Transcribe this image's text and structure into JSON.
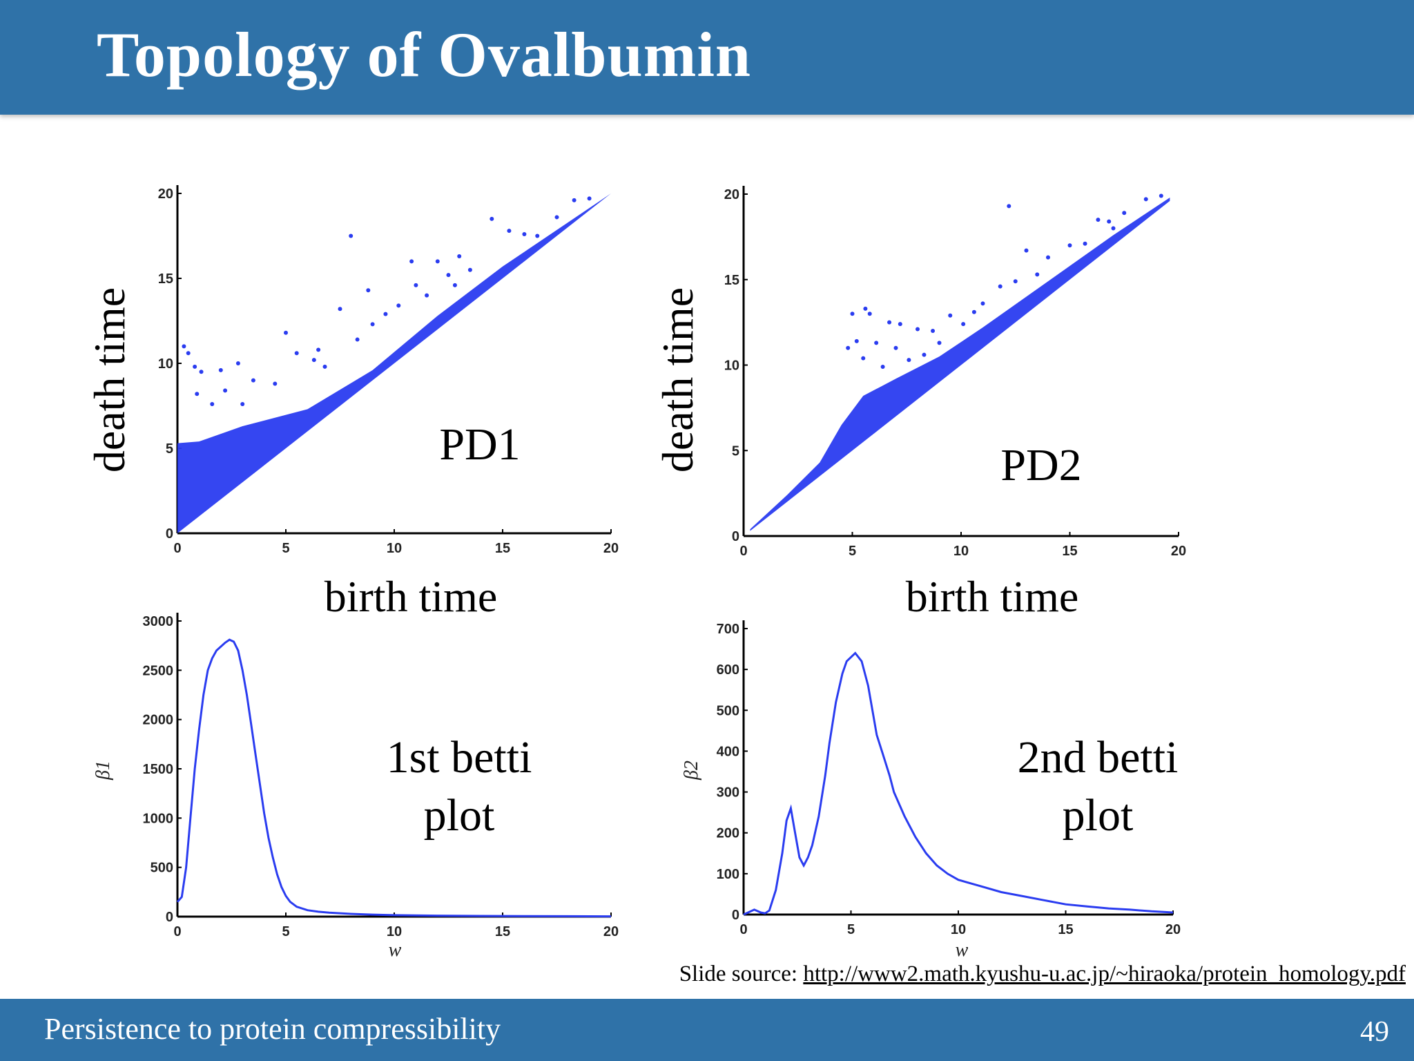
{
  "slide": {
    "title": "Topology of Ovalbumin",
    "footer": "Persistence to protein compressibility",
    "page_number": "49",
    "source_label": "Slide source:",
    "source_url": "http://www2.math.kyushu-u.ac.jp/~hiraoka/protein_homology.pdf"
  },
  "colors": {
    "header": "#2f72a8",
    "series": "#2a3cf0"
  },
  "chart_data": [
    {
      "id": "pd1",
      "type": "scatter",
      "title": "PD1",
      "xlabel": "birth time",
      "ylabel": "death time",
      "xlim": [
        0,
        20
      ],
      "ylim": [
        0,
        20
      ],
      "xticks": [
        0,
        5,
        10,
        15,
        20
      ],
      "yticks": [
        0,
        5,
        10,
        15,
        20
      ],
      "points": [
        [
          0.3,
          11.0
        ],
        [
          0.5,
          10.6
        ],
        [
          0.8,
          9.8
        ],
        [
          1.1,
          9.5
        ],
        [
          2.0,
          9.6
        ],
        [
          2.8,
          10.0
        ],
        [
          5.0,
          11.8
        ],
        [
          5.5,
          10.6
        ],
        [
          6.3,
          10.2
        ],
        [
          6.5,
          10.8
        ],
        [
          8.0,
          17.5
        ],
        [
          8.8,
          14.3
        ],
        [
          10.8,
          16.0
        ],
        [
          12.0,
          16.0
        ],
        [
          13.0,
          16.3
        ],
        [
          14.5,
          18.5
        ],
        [
          15.3,
          17.8
        ],
        [
          16.0,
          17.6
        ],
        [
          18.3,
          19.6
        ],
        [
          7.5,
          13.2
        ],
        [
          9.0,
          12.3
        ],
        [
          10.2,
          13.4
        ],
        [
          11.0,
          14.6
        ],
        [
          12.5,
          15.2
        ],
        [
          13.5,
          15.5
        ],
        [
          16.6,
          17.5
        ],
        [
          17.5,
          18.6
        ],
        [
          19.0,
          19.7
        ],
        [
          3.5,
          9.0
        ],
        [
          4.5,
          8.8
        ],
        [
          2.2,
          8.4
        ],
        [
          1.6,
          7.6
        ],
        [
          0.9,
          8.2
        ],
        [
          3.0,
          7.6
        ],
        [
          6.8,
          9.8
        ],
        [
          8.3,
          11.4
        ],
        [
          9.6,
          12.9
        ],
        [
          11.5,
          14.0
        ],
        [
          12.8,
          14.6
        ]
      ]
    },
    {
      "id": "pd2",
      "type": "scatter",
      "title": "PD2",
      "xlabel": "birth time",
      "ylabel": "death time",
      "xlim": [
        0,
        20
      ],
      "ylim": [
        0,
        20
      ],
      "xticks": [
        0,
        5,
        10,
        15,
        20
      ],
      "yticks": [
        0,
        5,
        10,
        15,
        20
      ],
      "points": [
        [
          5.0,
          13.0
        ],
        [
          5.6,
          13.3
        ],
        [
          5.8,
          13.0
        ],
        [
          6.7,
          12.5
        ],
        [
          7.2,
          12.4
        ],
        [
          8.0,
          12.1
        ],
        [
          8.7,
          12.0
        ],
        [
          12.2,
          19.3
        ],
        [
          13.0,
          16.7
        ],
        [
          13.5,
          15.3
        ],
        [
          14.0,
          16.3
        ],
        [
          15.0,
          17.0
        ],
        [
          15.7,
          17.1
        ],
        [
          16.3,
          18.5
        ],
        [
          17.0,
          18.0
        ],
        [
          18.5,
          19.7
        ],
        [
          10.1,
          12.4
        ],
        [
          10.6,
          13.1
        ],
        [
          11.0,
          13.6
        ],
        [
          9.5,
          12.9
        ],
        [
          6.1,
          11.3
        ],
        [
          7.0,
          11.0
        ],
        [
          5.2,
          11.4
        ],
        [
          4.8,
          11.0
        ],
        [
          5.5,
          10.4
        ],
        [
          11.8,
          14.6
        ],
        [
          12.5,
          14.9
        ],
        [
          16.8,
          18.4
        ],
        [
          17.5,
          18.9
        ],
        [
          19.2,
          19.9
        ],
        [
          6.4,
          9.9
        ],
        [
          7.6,
          10.3
        ],
        [
          8.3,
          10.6
        ],
        [
          9.0,
          11.3
        ]
      ]
    },
    {
      "id": "betti1",
      "type": "line",
      "title": "1st betti plot",
      "xlabel": "w",
      "ylabel": "β1",
      "xlim": [
        0,
        20
      ],
      "ylim": [
        0,
        3000
      ],
      "xticks": [
        0,
        5,
        10,
        15,
        20
      ],
      "yticks": [
        0,
        500,
        1000,
        1500,
        2000,
        2500,
        3000
      ],
      "x": [
        0,
        0.2,
        0.4,
        0.6,
        0.8,
        1.0,
        1.2,
        1.4,
        1.6,
        1.8,
        2.0,
        2.2,
        2.4,
        2.6,
        2.8,
        3.0,
        3.2,
        3.4,
        3.6,
        3.8,
        4.0,
        4.2,
        4.4,
        4.6,
        4.8,
        5.0,
        5.2,
        5.5,
        6.0,
        6.5,
        7.0,
        8.0,
        9.0,
        10.0,
        12.0,
        14.0,
        16.0,
        18.0,
        20.0
      ],
      "y": [
        150,
        200,
        500,
        1000,
        1500,
        1900,
        2250,
        2500,
        2620,
        2700,
        2740,
        2780,
        2810,
        2790,
        2700,
        2500,
        2250,
        1950,
        1650,
        1350,
        1050,
        800,
        600,
        430,
        300,
        210,
        150,
        100,
        65,
        50,
        40,
        28,
        20,
        15,
        10,
        7,
        5,
        4,
        3
      ]
    },
    {
      "id": "betti2",
      "type": "line",
      "title": "2nd betti plot",
      "xlabel": "w",
      "ylabel": "β2",
      "xlim": [
        0,
        20
      ],
      "ylim": [
        0,
        700
      ],
      "xticks": [
        0,
        5,
        10,
        15,
        20
      ],
      "yticks": [
        0,
        100,
        200,
        300,
        400,
        500,
        600,
        700
      ],
      "x": [
        0,
        0.5,
        0.8,
        1.0,
        1.2,
        1.5,
        1.8,
        2.0,
        2.2,
        2.4,
        2.6,
        2.8,
        3.0,
        3.2,
        3.5,
        3.8,
        4.0,
        4.3,
        4.6,
        4.8,
        5.0,
        5.2,
        5.5,
        5.8,
        6.0,
        6.2,
        6.5,
        6.8,
        7.0,
        7.5,
        8.0,
        8.5,
        9.0,
        9.5,
        10.0,
        11.0,
        12.0,
        13.0,
        14.0,
        15.0,
        16.0,
        17.0,
        18.0,
        19.0,
        20.0
      ],
      "y": [
        0,
        12,
        5,
        3,
        10,
        60,
        150,
        230,
        260,
        200,
        140,
        120,
        140,
        170,
        240,
        340,
        420,
        520,
        590,
        620,
        630,
        640,
        620,
        560,
        500,
        440,
        390,
        340,
        300,
        240,
        190,
        150,
        120,
        100,
        85,
        70,
        55,
        45,
        35,
        25,
        20,
        15,
        12,
        8,
        5
      ]
    }
  ]
}
